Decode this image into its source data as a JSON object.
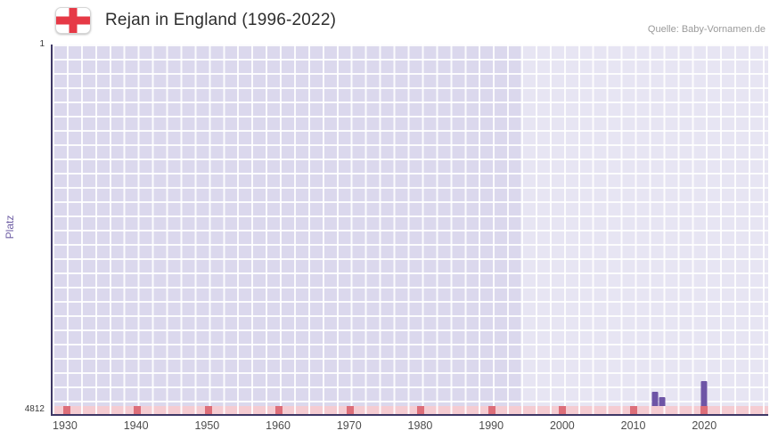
{
  "header": {
    "title": "Rejan in England (1996-2022)",
    "source": "Quelle: Baby-Vornamen.de",
    "flag_icon": "england-flag"
  },
  "chart_data": {
    "type": "bar",
    "title": "Rejan in England (1996-2022)",
    "xlabel": "",
    "ylabel": "Platz",
    "x_ticks": [
      1930,
      1940,
      1950,
      1960,
      1970,
      1980,
      1990,
      2000,
      2010,
      2020
    ],
    "x_range": [
      1928,
      2029
    ],
    "y_axis": {
      "top_label": "1",
      "bottom_label": "4812",
      "min": 1,
      "max": 4812,
      "inverted": true
    },
    "grid": true,
    "legend": false,
    "highlight_region": {
      "start_year": 1994,
      "end_year": 2029
    },
    "points": [
      {
        "year": 2013,
        "rank": 4620
      },
      {
        "year": 2014,
        "rank": 4690
      },
      {
        "year": 2020,
        "rank": 4480
      }
    ],
    "colors": {
      "bar": "#6e55a6",
      "plot_bg": "#dbd8ed",
      "grid_line": "#ffffff",
      "strip_bg": "#f5ccd2",
      "strip_marker": "#dd6e79",
      "axis_line": "#3f3866",
      "flag_cross": "#e63946",
      "ylabel_text": "#6f5fa5"
    }
  }
}
